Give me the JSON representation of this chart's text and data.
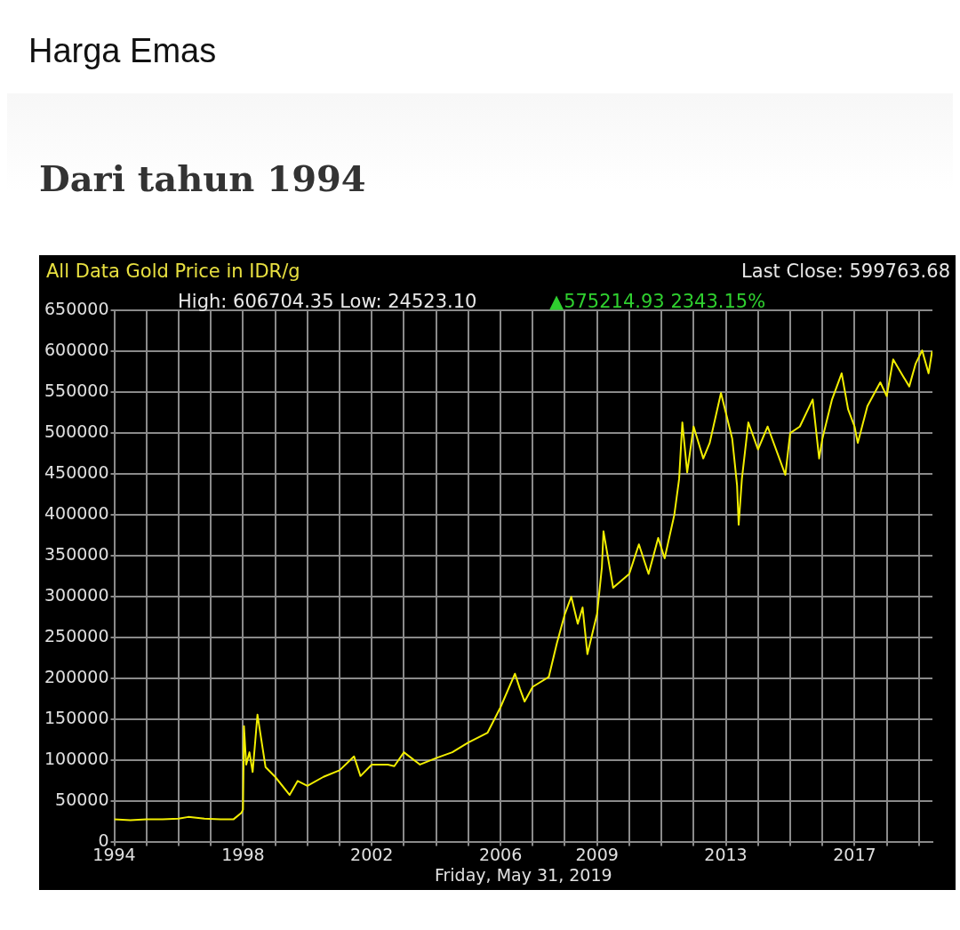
{
  "chart_data": {
    "type": "line",
    "title": "Harga Emas",
    "subtitle": "Dari tahun 1994",
    "annotations": [
      "All Data Gold Price in IDR/g",
      "Last Close: 599763.68",
      "High: 606704.35 Low: 24523.10",
      "▲575214.93 2343.15%"
    ],
    "xlabel": "Friday, May 31, 2019",
    "series": [
      {
        "color": "#f2ee00",
        "x": [
          1994.0,
          1994.5,
          1995.0,
          1995.5,
          1996.0,
          1996.3,
          1996.8,
          1997.3,
          1997.7,
          1997.95,
          1998.0,
          1998.03,
          1998.1,
          1998.2,
          1998.3,
          1998.45,
          1998.7,
          1999.0,
          1999.45,
          1999.7,
          2000.0,
          2000.5,
          2001.0,
          2001.45,
          2001.65,
          2002.0,
          2002.5,
          2002.7,
          2003.0,
          2003.5,
          2004.0,
          2004.5,
          2005.0,
          2005.6,
          2006.0,
          2006.45,
          2006.6,
          2006.75,
          2007.0,
          2007.5,
          2007.75,
          2008.0,
          2008.2,
          2008.4,
          2008.55,
          2008.7,
          2009.0,
          2009.15,
          2009.2,
          2009.5,
          2010.0,
          2010.3,
          2010.6,
          2010.9,
          2011.1,
          2011.4,
          2011.55,
          2011.65,
          2011.8,
          2012.0,
          2012.3,
          2012.5,
          2012.85,
          2013.0,
          2013.2,
          2013.35,
          2013.4,
          2013.5,
          2013.7,
          2014.0,
          2014.3,
          2014.85,
          2015.0,
          2015.3,
          2015.7,
          2015.9,
          2016.0,
          2016.3,
          2016.6,
          2016.8,
          2017.0,
          2017.1,
          2017.4,
          2017.8,
          2018.0,
          2018.2,
          2018.5,
          2018.7,
          2018.9,
          2019.1,
          2019.3,
          2019.41
        ],
        "values": [
          28000,
          27000,
          28000,
          28000,
          29000,
          31000,
          29000,
          28000,
          28000,
          36000,
          40000,
          142000,
          95000,
          110000,
          86000,
          156000,
          92000,
          80000,
          58000,
          75000,
          69000,
          80000,
          88000,
          105000,
          81000,
          95000,
          95000,
          93000,
          110000,
          95000,
          103000,
          110000,
          122000,
          134000,
          165000,
          206000,
          188000,
          172000,
          190000,
          202000,
          243000,
          279000,
          300000,
          267000,
          287000,
          230000,
          279000,
          336000,
          380000,
          311000,
          328000,
          364000,
          328000,
          372000,
          347000,
          400000,
          444000,
          513000,
          452000,
          508000,
          469000,
          488000,
          549000,
          525000,
          493000,
          436000,
          388000,
          444000,
          513000,
          480000,
          508000,
          449000,
          500000,
          508000,
          541000,
          469000,
          493000,
          541000,
          573000,
          529000,
          508000,
          488000,
          533000,
          562000,
          545000,
          590000,
          570000,
          557000,
          585000,
          601000,
          573000,
          600000
        ]
      }
    ],
    "xlim": [
      1994,
      2019.42
    ],
    "xticks": [
      1994,
      {
        "value": 1995,
        "label": null
      },
      {
        "value": 1996,
        "label": null
      },
      {
        "value": 1997,
        "label": null
      },
      1998,
      {
        "value": 1999,
        "label": null
      },
      {
        "value": 2000,
        "label": null
      },
      {
        "value": 2001,
        "label": null
      },
      2002,
      {
        "value": 2003,
        "label": null
      },
      {
        "value": 2004,
        "label": null
      },
      {
        "value": 2005,
        "label": null
      },
      2006,
      {
        "value": 2007,
        "label": null
      },
      {
        "value": 2008,
        "label": null
      },
      2009,
      {
        "value": 2010,
        "label": null
      },
      {
        "value": 2011,
        "label": null
      },
      {
        "value": 2012,
        "label": null
      },
      2013,
      {
        "value": 2014,
        "label": null
      },
      {
        "value": 2015,
        "label": null
      },
      {
        "value": 2016,
        "label": null
      },
      2017,
      {
        "value": 2018,
        "label": null
      },
      {
        "value": 2019,
        "label": null
      }
    ],
    "ylim": [
      0,
      650000
    ],
    "yticks": [
      0,
      50000,
      100000,
      150000,
      200000,
      250000,
      300000,
      350000,
      400000,
      450000,
      500000,
      550000,
      600000,
      650000
    ],
    "grid": true,
    "legend": false,
    "marker": "none",
    "line_style": "solid"
  }
}
